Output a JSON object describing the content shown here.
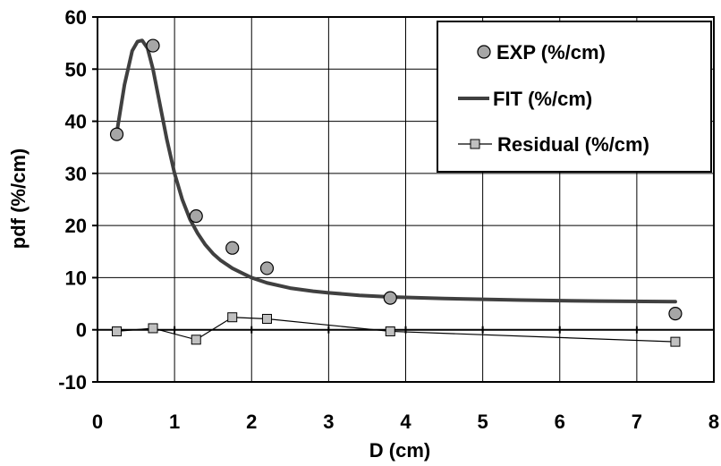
{
  "chart_data": {
    "type": "scatter",
    "title": "",
    "xlabel": "D (cm)",
    "ylabel": "pdf (%/cm)",
    "xlim": [
      0,
      8
    ],
    "ylim": [
      -10,
      60
    ],
    "x_ticks": [
      "0",
      "1",
      "2",
      "3",
      "4",
      "5",
      "6",
      "7",
      "8"
    ],
    "y_ticks": [
      "60",
      "50",
      "40",
      "30",
      "20",
      "10",
      "0",
      "-10"
    ],
    "grid": true,
    "legend_position": "top-right",
    "series": [
      {
        "name": "EXP (%/cm)",
        "kind": "markers",
        "marker": "circle",
        "color": "#a6a6a6",
        "x": [
          0.25,
          0.72,
          1.28,
          1.75,
          2.2,
          3.8,
          7.5
        ],
        "y": [
          37.5,
          54.5,
          21.8,
          15.7,
          11.8,
          6.1,
          3.1
        ]
      },
      {
        "name": "FIT (%/cm)",
        "kind": "line",
        "color": "#404040",
        "x": [
          0.25,
          0.35,
          0.45,
          0.52,
          0.58,
          0.65,
          0.72,
          0.8,
          0.9,
          1.0,
          1.1,
          1.2,
          1.3,
          1.4,
          1.5,
          1.6,
          1.75,
          1.9,
          2.0,
          2.2,
          2.5,
          2.8,
          3.0,
          3.4,
          3.8,
          4.5,
          5.5,
          6.5,
          7.5
        ],
        "y": [
          37.8,
          47.0,
          53.5,
          55.3,
          55.5,
          54.0,
          50.0,
          44.0,
          36.5,
          30.0,
          25.0,
          21.2,
          18.5,
          16.3,
          14.6,
          13.3,
          11.8,
          10.7,
          10.0,
          9.0,
          8.0,
          7.4,
          7.1,
          6.6,
          6.3,
          6.0,
          5.7,
          5.5,
          5.4
        ]
      },
      {
        "name": "Residual (%/cm)",
        "kind": "line-markers",
        "marker": "square",
        "color": "#000000",
        "marker_fill": "#c0c0c0",
        "x": [
          0.25,
          0.72,
          1.28,
          1.75,
          2.2,
          3.8,
          7.5
        ],
        "y": [
          -0.3,
          0.3,
          -1.9,
          2.4,
          2.1,
          -0.3,
          -2.3
        ]
      }
    ]
  }
}
